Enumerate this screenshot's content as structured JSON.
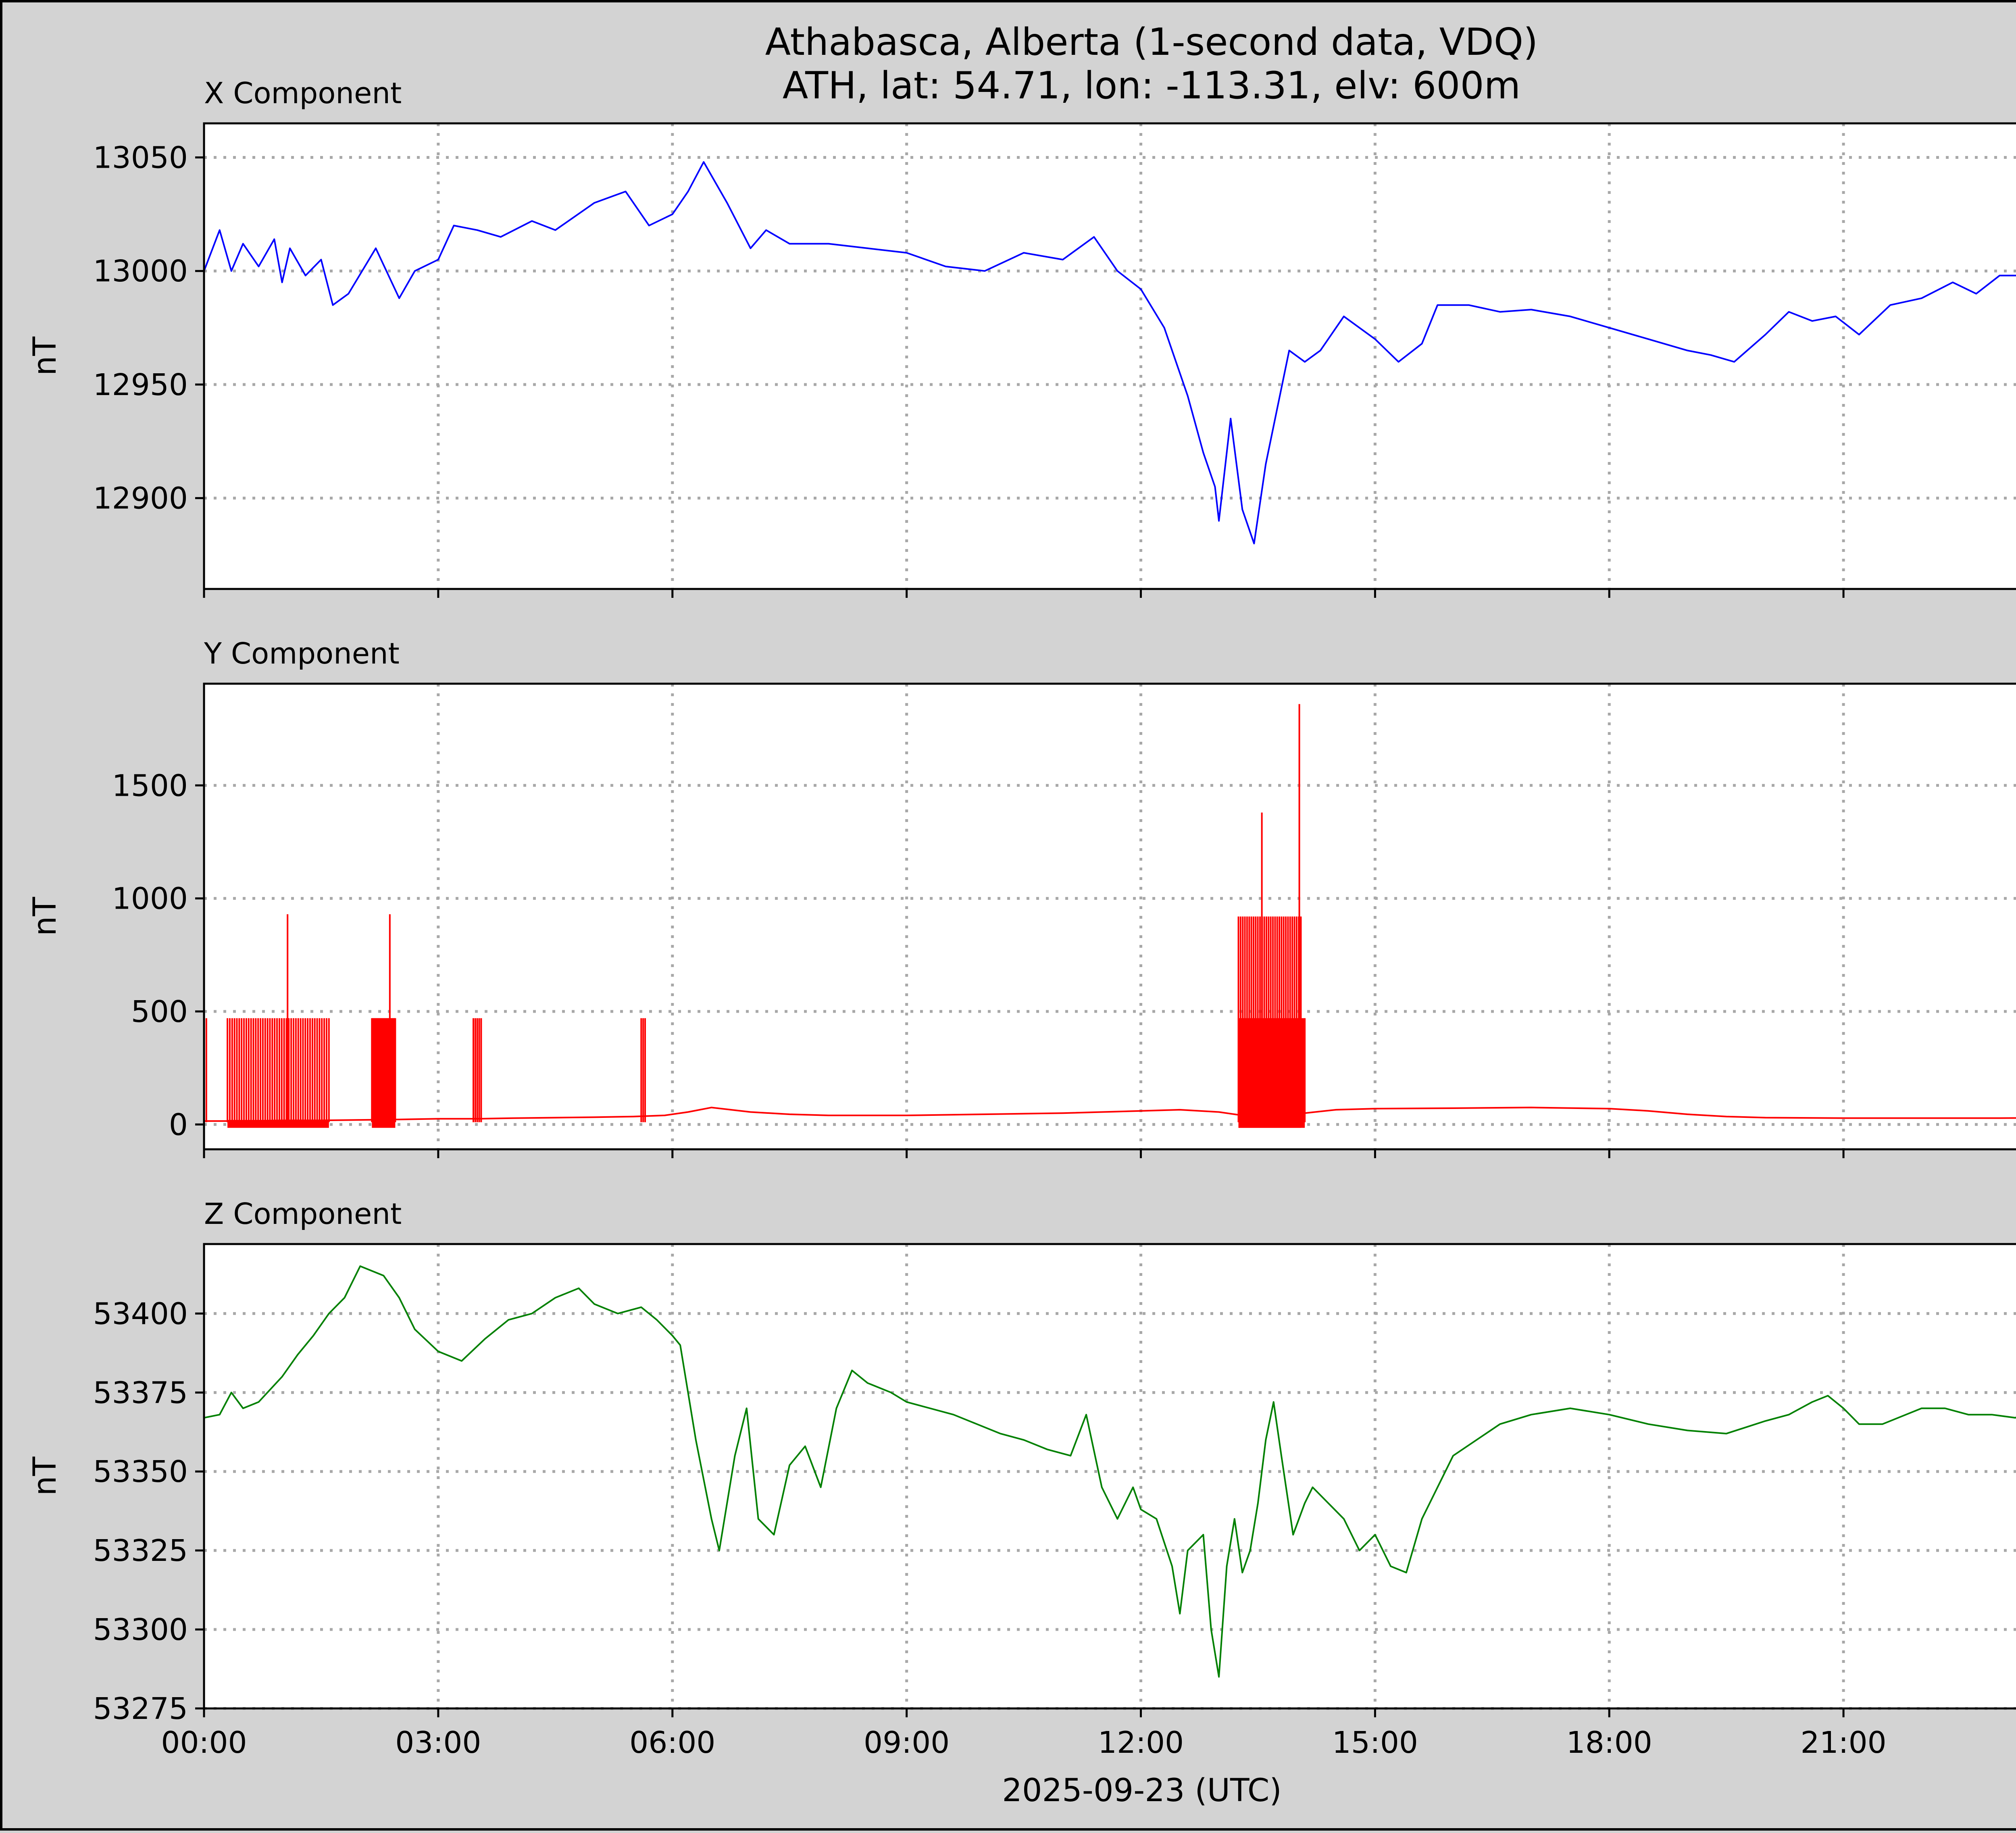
{
  "chart_data": {
    "type": "line",
    "title_line1": "Athabasca, Alberta (1-second data, VDQ)",
    "title_line2": "ATH, lat: 54.71, lon: -113.31, elv: 600m",
    "xlabel": "2025-09-23 (UTC)",
    "x_ticks": [
      "00:00",
      "03:00",
      "06:00",
      "09:00",
      "12:00",
      "15:00",
      "18:00",
      "21:00"
    ],
    "x_range_hours": [
      0,
      24
    ],
    "grid": true,
    "colors": {
      "x": "#0000ff",
      "y": "#ff0000",
      "z": "#008000",
      "background": "#d3d3d3",
      "grid": "#a8a8a8"
    },
    "panels": [
      {
        "name": "X Component",
        "ylabel": "nT",
        "ylim": [
          12860,
          13065
        ],
        "yticks": [
          12900,
          12950,
          13000,
          13050
        ],
        "color": "#0000ff",
        "x_hours": [
          0,
          0.2,
          0.35,
          0.5,
          0.7,
          0.9,
          1.0,
          1.1,
          1.3,
          1.5,
          1.65,
          1.85,
          2.2,
          2.5,
          2.7,
          3.0,
          3.2,
          3.5,
          3.8,
          4.2,
          4.5,
          5.0,
          5.4,
          5.7,
          6.0,
          6.2,
          6.4,
          6.7,
          7.0,
          7.2,
          7.5,
          8.0,
          8.5,
          9.0,
          9.5,
          10.0,
          10.5,
          11.0,
          11.4,
          11.7,
          12.0,
          12.3,
          12.6,
          12.8,
          12.95,
          13.0,
          13.15,
          13.3,
          13.45,
          13.6,
          13.75,
          13.9,
          14.1,
          14.3,
          14.6,
          15.0,
          15.3,
          15.6,
          15.8,
          16.2,
          16.6,
          17.0,
          17.5,
          18.0,
          18.5,
          19.0,
          19.3,
          19.6,
          20.0,
          20.3,
          20.6,
          20.9,
          21.2,
          21.6,
          22.0,
          22.4,
          22.7,
          23.0,
          23.3,
          23.6,
          23.8,
          24.0
        ],
        "values": [
          13000,
          13018,
          13000,
          13012,
          13002,
          13014,
          12995,
          13010,
          12998,
          13005,
          12985,
          12990,
          13010,
          12988,
          13000,
          13005,
          13020,
          13018,
          13015,
          13022,
          13018,
          13030,
          13035,
          13020,
          13025,
          13035,
          13048,
          13030,
          13010,
          13018,
          13012,
          13012,
          13010,
          13008,
          13002,
          13000,
          13008,
          13005,
          13015,
          13000,
          12992,
          12975,
          12945,
          12920,
          12905,
          12890,
          12935,
          12895,
          12880,
          12915,
          12940,
          12965,
          12960,
          12965,
          12980,
          12970,
          12960,
          12968,
          12985,
          12985,
          12982,
          12983,
          12980,
          12975,
          12970,
          12965,
          12963,
          12960,
          12972,
          12982,
          12978,
          12980,
          12972,
          12985,
          12988,
          12995,
          12990,
          12998,
          12998,
          13002,
          13005,
          12992
        ]
      },
      {
        "name": "Y Component",
        "ylabel": "nT",
        "ylim": [
          -110,
          1950
        ],
        "yticks": [
          0,
          500,
          1000,
          1500
        ],
        "color": "#ff0000",
        "x_hours": [
          0,
          0.5,
          1.0,
          1.5,
          2.0,
          2.5,
          3.0,
          3.5,
          4.0,
          4.5,
          5.0,
          5.5,
          5.9,
          6.2,
          6.5,
          7.0,
          7.5,
          8.0,
          9.0,
          10.0,
          11.0,
          12.0,
          12.5,
          13.0,
          13.3,
          14.1,
          14.5,
          15.0,
          16.0,
          17.0,
          18.0,
          18.5,
          19.0,
          19.5,
          20.0,
          21.0,
          22.0,
          23.0,
          24.0
        ],
        "values": [
          15,
          15,
          18,
          18,
          20,
          22,
          25,
          25,
          28,
          30,
          32,
          35,
          40,
          55,
          75,
          55,
          45,
          40,
          40,
          45,
          50,
          60,
          65,
          55,
          40,
          50,
          65,
          70,
          72,
          75,
          70,
          60,
          45,
          35,
          30,
          28,
          28,
          28,
          30
        ],
        "spikes": [
          {
            "start_hour": 0.03,
            "end_hour": 0.04,
            "count": 1,
            "value": 470
          },
          {
            "start_hour": 0.3,
            "end_hour": 1.6,
            "count": 44,
            "value": 470
          },
          {
            "start_hour": 1.07,
            "end_hour": 1.08,
            "count": 1,
            "value": 930
          },
          {
            "start_hour": 2.15,
            "end_hour": 2.45,
            "count": 40,
            "value": 470
          },
          {
            "start_hour": 2.38,
            "end_hour": 2.39,
            "count": 1,
            "value": 930
          },
          {
            "start_hour": 3.45,
            "end_hour": 3.55,
            "count": 5,
            "value": 470
          },
          {
            "start_hour": 5.6,
            "end_hour": 5.65,
            "count": 3,
            "value": 470
          },
          {
            "start_hour": 13.25,
            "end_hour": 14.1,
            "count": 70,
            "value": 470
          },
          {
            "start_hour": 13.25,
            "end_hour": 14.05,
            "count": 30,
            "value": 920
          },
          {
            "start_hour": 13.55,
            "end_hour": 13.56,
            "count": 1,
            "value": 1380
          },
          {
            "start_hour": 14.03,
            "end_hour": 14.04,
            "count": 1,
            "value": 1860
          }
        ]
      },
      {
        "name": "Z Component",
        "ylabel": "nT",
        "ylim": [
          53275,
          53422
        ],
        "yticks": [
          53275,
          53300,
          53325,
          53350,
          53375,
          53400
        ],
        "color": "#008000",
        "x_hours": [
          0,
          0.2,
          0.35,
          0.5,
          0.7,
          1.0,
          1.2,
          1.4,
          1.6,
          1.8,
          2.0,
          2.3,
          2.5,
          2.7,
          3.0,
          3.3,
          3.6,
          3.9,
          4.2,
          4.5,
          4.8,
          5.0,
          5.3,
          5.6,
          5.8,
          6.0,
          6.1,
          6.3,
          6.5,
          6.6,
          6.8,
          6.95,
          7.1,
          7.3,
          7.5,
          7.7,
          7.9,
          8.1,
          8.3,
          8.5,
          8.8,
          9.0,
          9.3,
          9.6,
          9.9,
          10.2,
          10.5,
          10.8,
          11.1,
          11.3,
          11.5,
          11.7,
          11.9,
          12.0,
          12.2,
          12.4,
          12.5,
          12.6,
          12.8,
          12.9,
          13.0,
          13.1,
          13.2,
          13.3,
          13.4,
          13.5,
          13.6,
          13.7,
          13.8,
          13.95,
          14.1,
          14.2,
          14.4,
          14.6,
          14.8,
          15.0,
          15.2,
          15.4,
          15.6,
          15.8,
          16.0,
          16.3,
          16.6,
          17.0,
          17.5,
          18.0,
          18.5,
          19.0,
          19.5,
          20.0,
          20.3,
          20.6,
          20.8,
          21.0,
          21.2,
          21.5,
          21.8,
          22.0,
          22.3,
          22.6,
          22.9,
          23.2,
          23.5,
          23.8,
          24.0
        ],
        "values": [
          53367,
          53368,
          53375,
          53370,
          53372,
          53380,
          53387,
          53393,
          53400,
          53405,
          53415,
          53412,
          53405,
          53395,
          53388,
          53385,
          53392,
          53398,
          53400,
          53405,
          53408,
          53403,
          53400,
          53402,
          53398,
          53393,
          53390,
          53360,
          53335,
          53325,
          53355,
          53370,
          53335,
          53330,
          53352,
          53358,
          53345,
          53370,
          53382,
          53378,
          53375,
          53372,
          53370,
          53368,
          53365,
          53362,
          53360,
          53357,
          53355,
          53368,
          53345,
          53335,
          53345,
          53338,
          53335,
          53320,
          53305,
          53325,
          53330,
          53300,
          53285,
          53320,
          53335,
          53318,
          53325,
          53340,
          53360,
          53372,
          53355,
          53330,
          53340,
          53345,
          53340,
          53335,
          53325,
          53330,
          53320,
          53318,
          53335,
          53345,
          53355,
          53360,
          53365,
          53368,
          53370,
          53368,
          53365,
          53363,
          53362,
          53366,
          53368,
          53372,
          53374,
          53370,
          53365,
          53365,
          53368,
          53370,
          53370,
          53368,
          53368,
          53367,
          53370,
          53365,
          53360
        ]
      }
    ]
  }
}
